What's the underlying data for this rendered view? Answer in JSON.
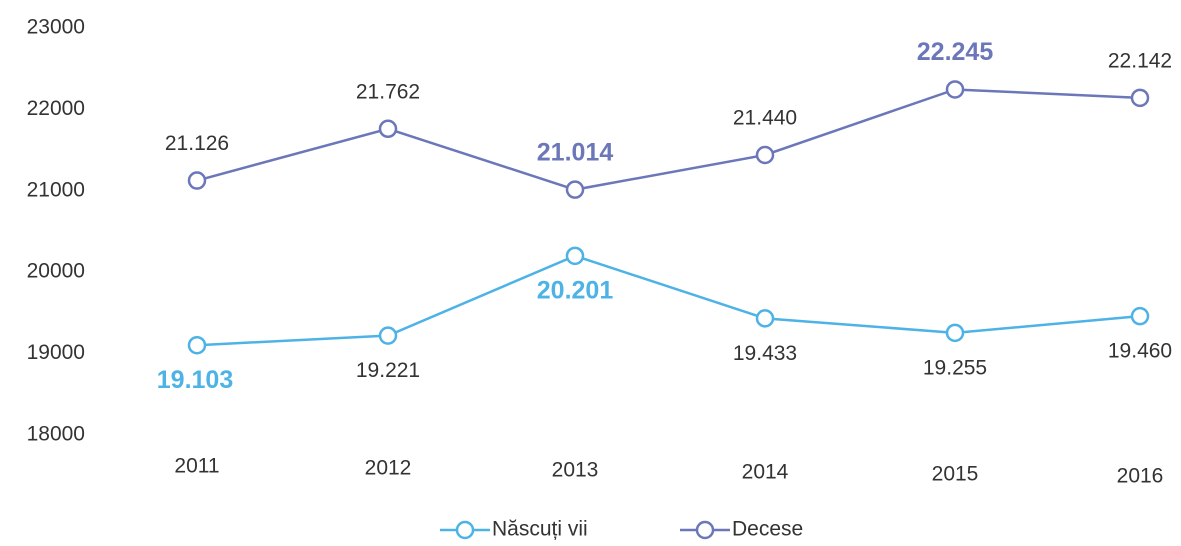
{
  "chart_data": {
    "type": "line",
    "categories": [
      "2011",
      "2012",
      "2013",
      "2014",
      "2015",
      "2016"
    ],
    "series": [
      {
        "name": "Născuți vii",
        "color": "#4db3e6",
        "values": [
          19103,
          19221,
          20201,
          19433,
          19255,
          19460
        ],
        "value_labels": [
          "19.103",
          "19.221",
          "20.201",
          "19.433",
          "19.255",
          "19.460"
        ]
      },
      {
        "name": "Decese",
        "color": "#6b77b8",
        "values": [
          21126,
          21762,
          21014,
          21440,
          22245,
          22142
        ],
        "value_labels": [
          "21.126",
          "21.762",
          "21.014",
          "21.440",
          "22.245",
          "22.142"
        ]
      }
    ],
    "ylim": [
      18000,
      23000
    ],
    "yticks": [
      18000,
      19000,
      20000,
      21000,
      22000,
      23000
    ],
    "grid": false
  }
}
